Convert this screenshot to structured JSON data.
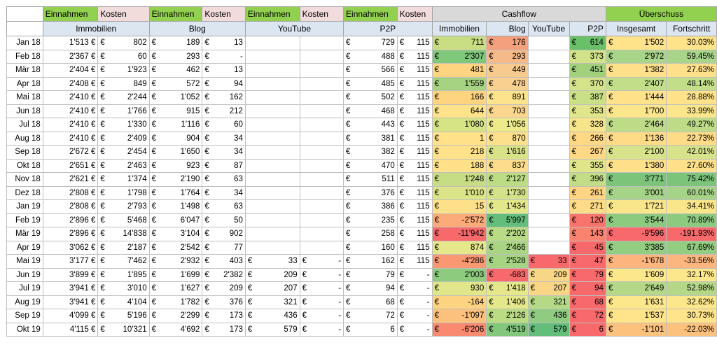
{
  "colors": {
    "green_header": "#92d050",
    "pink_header": "#f2dcdb",
    "blue_sub": "#dce6f1",
    "grey_header": "#d9d9d9"
  },
  "header1": [
    {
      "label": "Einnahmen",
      "style": "g"
    },
    {
      "label": "Kosten",
      "style": "p"
    },
    {
      "label": "Einnahmen",
      "style": "g"
    },
    {
      "label": "Kosten",
      "style": "p"
    },
    {
      "label": "Einnahmen",
      "style": "g"
    },
    {
      "label": "Kosten",
      "style": "p"
    },
    {
      "label": "Einnahmen",
      "style": "g"
    },
    {
      "label": "Kosten",
      "style": "p"
    }
  ],
  "cashflow_title": "Cashflow",
  "ueberschuss_title": "Überschuss",
  "header2": {
    "immobilien": "Immobilien",
    "blog": "Blog",
    "youtube": "YouTube",
    "p2p": "P2P",
    "cf_immobilien": "Immobilien",
    "cf_blog": "Blog",
    "cf_youtube": "YouTube",
    "cf_p2p": "P2P",
    "insgesamt": "Insgesamt",
    "fortschritt": "Fortschritt"
  },
  "currency": "€",
  "rows": [
    {
      "month": "Jan 18",
      "imm_in": "1'513 €",
      "imm_k": "802",
      "blog_in": "189",
      "blog_k": "13",
      "yt_in": "",
      "yt_k": "",
      "p2p_in": "729",
      "p2p_k": "115",
      "cf_imm": "711",
      "cf_imm_c": "#c9de83",
      "cf_blog": "176",
      "cf_blog_c": "#f4a07c",
      "cf_yt": "",
      "cf_yt_c": "#ffffff",
      "cf_p2p": "614",
      "cf_p2p_c": "#6abf69",
      "ins": "1'502",
      "ins_c": "#ffe38a",
      "fort": "30.03%",
      "fort_c": "#ffe38a"
    },
    {
      "month": "Feb 18",
      "imm_in": "2'367 €",
      "imm_k": "60",
      "blog_in": "293",
      "blog_k": "-",
      "yt_in": "",
      "yt_k": "",
      "p2p_in": "488",
      "p2p_k": "115",
      "cf_imm": "2'307",
      "cf_imm_c": "#7fc77b",
      "cf_blog": "293",
      "cf_blog_c": "#f6b98a",
      "cf_yt": "",
      "cf_yt_c": "#ffffff",
      "cf_p2p": "373",
      "cf_p2p_c": "#d2e289",
      "ins": "2'972",
      "ins_c": "#a8d58a",
      "fort": "59.45%",
      "fort_c": "#a8d58a"
    },
    {
      "month": "Mär 18",
      "imm_in": "2'404 €",
      "imm_k": "1'923",
      "blog_in": "462",
      "blog_k": "13",
      "yt_in": "",
      "yt_k": "",
      "p2p_in": "566",
      "p2p_k": "115",
      "cf_imm": "481",
      "cf_imm_c": "#ffd480",
      "cf_blog": "449",
      "cf_blog_c": "#f9ca8e",
      "cf_yt": "",
      "cf_yt_c": "#ffffff",
      "cf_p2p": "451",
      "cf_p2p_c": "#a2d17d",
      "ins": "1'382",
      "ins_c": "#ffe08a",
      "fort": "27.63%",
      "fort_c": "#ffe08a"
    },
    {
      "month": "Apr 18",
      "imm_in": "2'408 €",
      "imm_k": "849",
      "blog_in": "572",
      "blog_k": "94",
      "yt_in": "",
      "yt_k": "",
      "p2p_in": "485",
      "p2p_k": "115",
      "cf_imm": "1'559",
      "cf_imm_c": "#a6d381",
      "cf_blog": "478",
      "cf_blog_c": "#fad090",
      "cf_yt": "",
      "cf_yt_c": "#ffffff",
      "cf_p2p": "370",
      "cf_p2p_c": "#d4e38a",
      "ins": "2'407",
      "ins_c": "#c2de88",
      "fort": "48.14%",
      "fort_c": "#c2de88"
    },
    {
      "month": "Mai 18",
      "imm_in": "2'410 €",
      "imm_k": "2'244",
      "blog_in": "1'052",
      "blog_k": "162",
      "yt_in": "",
      "yt_k": "",
      "p2p_in": "502",
      "p2p_k": "115",
      "cf_imm": "166",
      "cf_imm_c": "#fed47f",
      "cf_blog": "891",
      "cf_blog_c": "#fde38c",
      "cf_yt": "",
      "cf_yt_c": "#ffffff",
      "cf_p2p": "387",
      "cf_p2p_c": "#c9e086",
      "ins": "1'444",
      "ins_c": "#ffe28a",
      "fort": "28.88%",
      "fort_c": "#ffe28a"
    },
    {
      "month": "Jun 18",
      "imm_in": "2'410 €",
      "imm_k": "1'766",
      "blog_in": "915",
      "blog_k": "212",
      "yt_in": "",
      "yt_k": "",
      "p2p_in": "468",
      "p2p_k": "115",
      "cf_imm": "644",
      "cf_imm_c": "#ffe38a",
      "cf_blog": "703",
      "cf_blog_c": "#fbd68e",
      "cf_yt": "",
      "cf_yt_c": "#ffffff",
      "cf_p2p": "353",
      "cf_p2p_c": "#e2e68b",
      "ins": "1'700",
      "ins_c": "#fbe68b",
      "fort": "33.99%",
      "fort_c": "#fbe68b"
    },
    {
      "month": "Jul 18",
      "imm_in": "2'410 €",
      "imm_k": "1'330",
      "blog_in": "1'116",
      "blog_k": "60",
      "yt_in": "",
      "yt_k": "",
      "p2p_in": "443",
      "p2p_k": "115",
      "cf_imm": "1'080",
      "cf_imm_c": "#d6e486",
      "cf_blog": "1'056",
      "cf_blog_c": "#ecea8b",
      "cf_yt": "",
      "cf_yt_c": "#ffffff",
      "cf_p2p": "328",
      "cf_p2p_c": "#f6e58a",
      "ins": "2'464",
      "ins_c": "#bedc87",
      "fort": "49.27%",
      "fort_c": "#bedc87"
    },
    {
      "month": "Aug 18",
      "imm_in": "2'410 €",
      "imm_k": "2'409",
      "blog_in": "904",
      "blog_k": "34",
      "yt_in": "",
      "yt_k": "",
      "p2p_in": "381",
      "p2p_k": "115",
      "cf_imm": "1",
      "cf_imm_c": "#ffe28a",
      "cf_blog": "870",
      "cf_blog_c": "#fde08c",
      "cf_yt": "",
      "cf_yt_c": "#ffffff",
      "cf_p2p": "266",
      "cf_p2p_c": "#ffd886",
      "ins": "1'136",
      "ins_c": "#ffdb88",
      "fort": "22.73%",
      "fort_c": "#ffdb88"
    },
    {
      "month": "Sep 18",
      "imm_in": "2'672 €",
      "imm_k": "2'454",
      "blog_in": "1'650",
      "blog_k": "34",
      "yt_in": "",
      "yt_k": "",
      "p2p_in": "382",
      "p2p_k": "115",
      "cf_imm": "218",
      "cf_imm_c": "#ffe18a",
      "cf_blog": "1'616",
      "cf_blog_c": "#d8e388",
      "cf_yt": "",
      "cf_yt_c": "#ffffff",
      "cf_p2p": "267",
      "cf_p2p_c": "#ffd886",
      "ins": "2'100",
      "ins_c": "#d7e38a",
      "fort": "42.01%",
      "fort_c": "#d7e38a"
    },
    {
      "month": "Okt 18",
      "imm_in": "2'651 €",
      "imm_k": "2'463",
      "blog_in": "923",
      "blog_k": "87",
      "yt_in": "",
      "yt_k": "",
      "p2p_in": "470",
      "p2p_k": "115",
      "cf_imm": "188",
      "cf_imm_c": "#ffe18a",
      "cf_blog": "837",
      "cf_blog_c": "#fcdd8d",
      "cf_yt": "",
      "cf_yt_c": "#ffffff",
      "cf_p2p": "355",
      "cf_p2p_c": "#dfe58a",
      "ins": "1'380",
      "ins_c": "#ffe08a",
      "fort": "27.60%",
      "fort_c": "#ffe08a"
    },
    {
      "month": "Nov 18",
      "imm_in": "2'621 €",
      "imm_k": "1'374",
      "blog_in": "2'190",
      "blog_k": "63",
      "yt_in": "",
      "yt_k": "",
      "p2p_in": "511",
      "p2p_k": "115",
      "cf_imm": "1'248",
      "cf_imm_c": "#c7dd84",
      "cf_blog": "2'127",
      "cf_blog_c": "#bcdd84",
      "cf_yt": "",
      "cf_yt_c": "#ffffff",
      "cf_p2p": "396",
      "cf_p2p_c": "#c3dd86",
      "ins": "3'771",
      "ins_c": "#7dc47b",
      "fort": "75.42%",
      "fort_c": "#7dc47b"
    },
    {
      "month": "Dez 18",
      "imm_in": "2'808 €",
      "imm_k": "1'798",
      "blog_in": "1'764",
      "blog_k": "34",
      "yt_in": "",
      "yt_k": "",
      "p2p_in": "376",
      "p2p_k": "115",
      "cf_imm": "1'010",
      "cf_imm_c": "#dbe588",
      "cf_blog": "1'730",
      "cf_blog_c": "#d3e188",
      "cf_yt": "",
      "cf_yt_c": "#ffffff",
      "cf_p2p": "261",
      "cf_p2p_c": "#ffd584",
      "ins": "3'001",
      "ins_c": "#a5d489",
      "fort": "60.01%",
      "fort_c": "#a5d489"
    },
    {
      "month": "Jan 19",
      "imm_in": "2'808 €",
      "imm_k": "2'793",
      "blog_in": "1'498",
      "blog_k": "63",
      "yt_in": "",
      "yt_k": "",
      "p2p_in": "386",
      "p2p_k": "115",
      "cf_imm": "15",
      "cf_imm_c": "#ffe08a",
      "cf_blog": "1'434",
      "cf_blog_c": "#e2e78a",
      "cf_yt": "",
      "cf_yt_c": "#ffffff",
      "cf_p2p": "271",
      "cf_p2p_c": "#fedb87",
      "ins": "1'721",
      "ins_c": "#f9e68b",
      "fort": "34.41%",
      "fort_c": "#f9e68b"
    },
    {
      "month": "Feb 19",
      "imm_in": "2'896 €",
      "imm_k": "5'468",
      "blog_in": "6'047",
      "blog_k": "50",
      "yt_in": "",
      "yt_k": "",
      "p2p_in": "235",
      "p2p_k": "115",
      "cf_imm": "-2'572",
      "cf_imm_c": "#fbab78",
      "cf_blog": "5'997",
      "cf_blog_c": "#63be7b",
      "cf_yt": "",
      "cf_yt_c": "#ffffff",
      "cf_p2p": "120",
      "cf_p2p_c": "#f8736b",
      "ins": "3'544",
      "ins_c": "#8bca7f",
      "fort": "70.89%",
      "fort_c": "#8bca7f"
    },
    {
      "month": "Mär 19",
      "imm_in": "2'896 €",
      "imm_k": "14'838",
      "blog_in": "3'104",
      "blog_k": "902",
      "yt_in": "",
      "yt_k": "",
      "p2p_in": "258",
      "p2p_k": "115",
      "cf_imm": "-11'942",
      "cf_imm_c": "#f8696b",
      "cf_blog": "2'202",
      "cf_blog_c": "#b8db84",
      "cf_yt": "",
      "cf_yt_c": "#ffffff",
      "cf_p2p": "143",
      "cf_p2p_c": "#f9836f",
      "ins": "-9'596",
      "ins_c": "#f8696b",
      "fort": "-191.93%",
      "fort_c": "#f8696b"
    },
    {
      "month": "Apr 19",
      "imm_in": "3'062 €",
      "imm_k": "2'187",
      "blog_in": "2'542",
      "blog_k": "77",
      "yt_in": "",
      "yt_k": "",
      "p2p_in": "160",
      "p2p_k": "115",
      "cf_imm": "874",
      "cf_imm_c": "#e5e88a",
      "cf_blog": "2'466",
      "cf_blog_c": "#a9d582",
      "cf_yt": "",
      "cf_yt_c": "#ffffff",
      "cf_p2p": "45",
      "cf_p2p_c": "#f8696b",
      "ins": "3'385",
      "ins_c": "#93cd81",
      "fort": "67.69%",
      "fort_c": "#93cd81"
    },
    {
      "month": "Mai 19",
      "imm_in": "3'177 €",
      "imm_k": "7'462",
      "blog_in": "2'932",
      "blog_k": "403",
      "yt_in": "33",
      "yt_k": "-",
      "p2p_in": "162",
      "p2p_k": "115",
      "cf_imm": "-4'286",
      "cf_imm_c": "#fa9873",
      "cf_blog": "2'528",
      "cf_blog_c": "#a6d482",
      "cf_yt": "33",
      "cf_yt_c": "#f8696b",
      "cf_p2p": "47",
      "cf_p2p_c": "#f8696b",
      "ins": "-1'678",
      "ins_c": "#fcb57c",
      "fort": "-33.56%",
      "fort_c": "#fcb57c"
    },
    {
      "month": "Jun 19",
      "imm_in": "3'899 €",
      "imm_k": "1'895",
      "blog_in": "1'699",
      "blog_k": "2'382",
      "yt_in": "209",
      "yt_k": "-",
      "p2p_in": "79",
      "p2p_k": "-",
      "cf_imm": "2'003",
      "cf_imm_c": "#8dcb7e",
      "cf_blog": "-683",
      "cf_blog_c": "#f8696b",
      "cf_yt": "209",
      "cf_yt_c": "#f9d686",
      "cf_p2p": "79",
      "cf_p2p_c": "#f8696b",
      "ins": "1'609",
      "ins_c": "#fde78b",
      "fort": "32.17%",
      "fort_c": "#fde78b"
    },
    {
      "month": "Jul 19",
      "imm_in": "3'941 €",
      "imm_k": "3'010",
      "blog_in": "1'627",
      "blog_k": "209",
      "yt_in": "207",
      "yt_k": "-",
      "p2p_in": "94",
      "p2p_k": "-",
      "cf_imm": "930",
      "cf_imm_c": "#e0e689",
      "cf_blog": "1'418",
      "cf_blog_c": "#e4e88a",
      "cf_yt": "207",
      "cf_yt_c": "#f9d686",
      "cf_p2p": "94",
      "cf_p2p_c": "#f8696b",
      "ins": "2'649",
      "ins_c": "#b4d887",
      "fort": "52.98%",
      "fort_c": "#b4d887"
    },
    {
      "month": "Aug 19",
      "imm_in": "3'941 €",
      "imm_k": "4'104",
      "blog_in": "1'782",
      "blog_k": "376",
      "yt_in": "321",
      "yt_k": "-",
      "p2p_in": "68",
      "p2p_k": "-",
      "cf_imm": "-164",
      "cf_imm_c": "#fdd280",
      "cf_blog": "1'406",
      "cf_blog_c": "#e5e88a",
      "cf_yt": "321",
      "cf_yt_c": "#b5d986",
      "cf_p2p": "68",
      "cf_p2p_c": "#f8696b",
      "ins": "1'631",
      "ins_c": "#fce78b",
      "fort": "32.62%",
      "fort_c": "#fce78b"
    },
    {
      "month": "Sep 19",
      "imm_in": "4'099 €",
      "imm_k": "5'196",
      "blog_in": "2'299",
      "blog_k": "173",
      "yt_in": "436",
      "yt_k": "-",
      "p2p_in": "72",
      "p2p_k": "-",
      "cf_imm": "-1'097",
      "cf_imm_c": "#fcc27d",
      "cf_blog": "2'126",
      "cf_blog_c": "#bcdc84",
      "cf_yt": "436",
      "cf_yt_c": "#8fcb81",
      "cf_p2p": "72",
      "cf_p2p_c": "#f8696b",
      "ins": "1'537",
      "ins_c": "#ffe48a",
      "fort": "30.73%",
      "fort_c": "#ffe48a"
    },
    {
      "month": "Okt 19",
      "imm_in": "4'115 €",
      "imm_k": "10'321",
      "blog_in": "4'692",
      "blog_k": "173",
      "yt_in": "579",
      "yt_k": "-",
      "p2p_in": "6",
      "p2p_k": "-",
      "cf_imm": "-6'206",
      "cf_imm_c": "#f98a70",
      "cf_blog": "4'519",
      "cf_blog_c": "#82c77c",
      "cf_yt": "579",
      "cf_yt_c": "#63be7b",
      "cf_p2p": "6",
      "cf_p2p_c": "#f8696b",
      "ins": "-1'101",
      "ins_c": "#fdc17e",
      "fort": "-22.03%",
      "fort_c": "#fdc17e"
    }
  ]
}
